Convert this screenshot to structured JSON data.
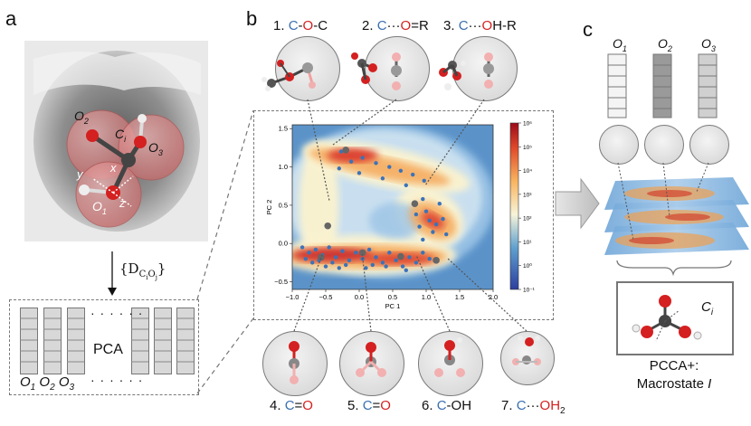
{
  "panels": {
    "a": "a",
    "b": "b",
    "c": "c"
  },
  "panel_a": {
    "atom_labels": {
      "o2": "O",
      "o2_sub": "2",
      "ci": "C",
      "ci_sub": "i",
      "o3": "O",
      "o3_sub": "3",
      "o1": "O",
      "o1_sub": "1",
      "x": "x",
      "y": "y",
      "z": "z"
    },
    "arrow_label": "{D",
    "arrow_label_sub": "C",
    "arrow_label_subsub_i": "i",
    "arrow_label_o": "O",
    "arrow_label_subsub_j": "j",
    "arrow_label_close": "}",
    "pca_label": "PCA",
    "dots_top": "· · · · · ·",
    "dots_bottom": "· · · · · ·",
    "bottom_labels": {
      "o1": "O",
      "o1_sub": "1",
      "o2": "O",
      "o2_sub": "2",
      "o3": "O",
      "o3_sub": "3"
    }
  },
  "panel_b": {
    "top_states": [
      {
        "num": "1.",
        "a": "C",
        "b": "-",
        "c": "O",
        "d": "-C"
      },
      {
        "num": "2.",
        "a": "C",
        "b": "···",
        "c": "O",
        "d": "=R"
      },
      {
        "num": "3.",
        "a": "C",
        "b": "···",
        "c": "O",
        "d": "H-R"
      }
    ],
    "bottom_states": [
      {
        "num": "4.",
        "a": "C",
        "b": "=",
        "c": "O",
        "d": ""
      },
      {
        "num": "5.",
        "a": "C",
        "b": "=",
        "c": "O",
        "d": ""
      },
      {
        "num": "6.",
        "a": "C",
        "b": "-",
        "c": "OH",
        "d": ""
      },
      {
        "num": "7.",
        "a": "C",
        "b": "···",
        "c": "OH",
        "d": "2"
      }
    ]
  },
  "chart_data": {
    "type": "heatmap",
    "xlabel": "PC 1",
    "ylabel": "PC 2",
    "xlim": [
      -1.0,
      2.0
    ],
    "ylim": [
      -0.6,
      1.55
    ],
    "x_ticks": [
      "−1.0",
      "−0.5",
      "0.0",
      "0.5",
      "1.0",
      "1.5",
      "2.0"
    ],
    "y_ticks": [
      "1.5",
      "1.0",
      "0.5",
      "0.0",
      "−0.5"
    ],
    "colorbar_ticks": [
      "10⁶",
      "10⁵",
      "10⁴",
      "10³",
      "10²",
      "10¹",
      "10⁰",
      "10⁻¹"
    ],
    "colorbar_scale": "log",
    "centroids": [
      {
        "x": -0.27,
        "y": 1.2
      },
      {
        "x": -0.12,
        "y": 1.07
      },
      {
        "x": 0.05,
        "y": 1.12
      },
      {
        "x": 0.25,
        "y": 1.05
      },
      {
        "x": 0.45,
        "y": 1.0
      },
      {
        "x": 0.62,
        "y": 0.95
      },
      {
        "x": 0.8,
        "y": 0.9
      },
      {
        "x": 0.97,
        "y": 0.82
      },
      {
        "x": -0.3,
        "y": 0.98
      },
      {
        "x": 0.0,
        "y": 0.92
      },
      {
        "x": 0.35,
        "y": 0.85
      },
      {
        "x": 0.7,
        "y": 0.76
      },
      {
        "x": 0.95,
        "y": 0.58
      },
      {
        "x": 1.2,
        "y": 0.52
      },
      {
        "x": 1.0,
        "y": 0.42
      },
      {
        "x": 0.85,
        "y": 0.38
      },
      {
        "x": 1.05,
        "y": 0.3
      },
      {
        "x": 1.15,
        "y": 0.25
      },
      {
        "x": 1.25,
        "y": 0.32
      },
      {
        "x": 0.9,
        "y": 0.22
      },
      {
        "x": 1.1,
        "y": 0.15
      },
      {
        "x": 1.3,
        "y": 0.12
      },
      {
        "x": 0.95,
        "y": 0.05
      },
      {
        "x": -0.85,
        "y": -0.05
      },
      {
        "x": -0.75,
        "y": -0.12
      },
      {
        "x": -0.65,
        "y": -0.08
      },
      {
        "x": -0.55,
        "y": -0.15
      },
      {
        "x": -0.45,
        "y": -0.05
      },
      {
        "x": -0.35,
        "y": -0.18
      },
      {
        "x": -0.25,
        "y": -0.1
      },
      {
        "x": -0.15,
        "y": -0.22
      },
      {
        "x": -0.05,
        "y": -0.12
      },
      {
        "x": 0.05,
        "y": -0.2
      },
      {
        "x": 0.15,
        "y": -0.08
      },
      {
        "x": 0.25,
        "y": -0.18
      },
      {
        "x": 0.35,
        "y": -0.25
      },
      {
        "x": 0.45,
        "y": -0.12
      },
      {
        "x": 0.55,
        "y": -0.22
      },
      {
        "x": 0.65,
        "y": -0.3
      },
      {
        "x": 0.75,
        "y": -0.18
      },
      {
        "x": 0.85,
        "y": -0.25
      },
      {
        "x": 0.95,
        "y": -0.12
      },
      {
        "x": 1.05,
        "y": -0.2
      },
      {
        "x": -0.7,
        "y": -0.25
      },
      {
        "x": -0.5,
        "y": -0.3
      },
      {
        "x": -0.3,
        "y": -0.32
      },
      {
        "x": 0.1,
        "y": -0.32
      },
      {
        "x": -0.8,
        "y": -0.2
      },
      {
        "x": -0.6,
        "y": -0.22
      },
      {
        "x": -0.4,
        "y": -0.25
      },
      {
        "x": 0.4,
        "y": -0.3
      },
      {
        "x": 0.7,
        "y": -0.35
      },
      {
        "x": -0.2,
        "y": -0.28
      },
      {
        "x": 0.2,
        "y": -0.28
      }
    ],
    "highlighted": [
      {
        "x": -0.47,
        "y": 0.23
      },
      {
        "x": -0.2,
        "y": 1.22
      },
      {
        "x": 0.83,
        "y": 0.52
      },
      {
        "x": -0.57,
        "y": -0.18
      },
      {
        "x": 0.05,
        "y": -0.12
      },
      {
        "x": 0.62,
        "y": -0.17
      },
      {
        "x": 1.15,
        "y": -0.22
      }
    ]
  },
  "panel_c": {
    "o_labels": [
      {
        "o": "O",
        "sub": "1"
      },
      {
        "o": "O",
        "sub": "2"
      },
      {
        "o": "O",
        "sub": "3"
      }
    ],
    "ci_label": "C",
    "ci_sub": "i",
    "pcca_line1": "PCCA+:",
    "pcca_line2": "Macrostate ",
    "pcca_italic": "I"
  },
  "colors": {
    "blue": "#3a6fb0",
    "red": "#d42020",
    "dash": "#777777"
  }
}
